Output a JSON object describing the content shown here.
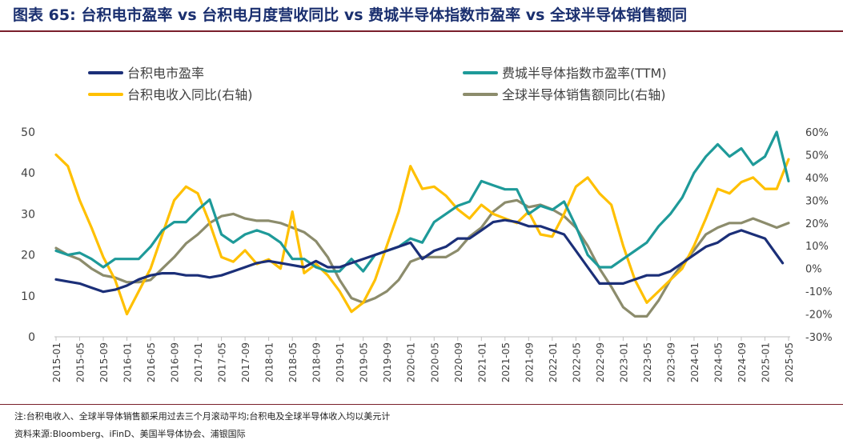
{
  "header": {
    "label": "图表",
    "number": "65:",
    "title": "台积电市盈率 vs 台积电月度营收同比 vs 费城半导体指数市盈率 vs 全球半导体销售额同"
  },
  "footer": {
    "note": "注:台积电收入、全球半导体销售额采用过去三个月滚动平均;台积电及全球半导体收入均以美元计",
    "source": "资料来源:Bloomberg、iFinD、美国半导体协会、浦银国际"
  },
  "colors": {
    "tsmc_pe": "#1b2f78",
    "sox_pe": "#1e9a99",
    "tsmc_rev": "#ffc000",
    "global_sales": "#8c8c6c"
  },
  "chart_data": {
    "type": "line",
    "left_axis": {
      "ylim": [
        0,
        50
      ],
      "ticks": [
        "0",
        "10",
        "20",
        "30",
        "40",
        "50"
      ]
    },
    "right_axis": {
      "ylim": [
        -30,
        60
      ],
      "ticks": [
        "-30%",
        "-20%",
        "-10%",
        "0%",
        "10%",
        "20%",
        "30%",
        "40%",
        "50%",
        "60%"
      ]
    },
    "x_ticks": [
      "2015-01",
      "2015-05",
      "2015-09",
      "2016-01",
      "2016-05",
      "2016-09",
      "2017-01",
      "2017-05",
      "2017-09",
      "2018-01",
      "2018-05",
      "2018-09",
      "2019-01",
      "2019-05",
      "2019-09",
      "2020-01",
      "2020-05",
      "2020-09",
      "2021-01",
      "2021-05",
      "2021-09",
      "2022-01",
      "2022-05",
      "2022-09",
      "2023-01",
      "2023-05",
      "2023-09",
      "2024-01",
      "2024-05",
      "2024-09",
      "2025-01",
      "2025-05"
    ],
    "x_start": "2015-01",
    "legend": {
      "placement": "top",
      "entries": [
        "台积电市盈率",
        "费城半导体指数市盈率(TTM)",
        "台积电收入同比(右轴)",
        "全球半导体销售额同比(右轴)"
      ]
    },
    "series": [
      {
        "name": "台积电市盈率",
        "axis": "left",
        "x": [
          "2015-01",
          "2015-03",
          "2015-05",
          "2015-07",
          "2015-09",
          "2015-11",
          "2016-01",
          "2016-03",
          "2016-05",
          "2016-07",
          "2016-09",
          "2016-11",
          "2017-01",
          "2017-03",
          "2017-05",
          "2017-07",
          "2017-09",
          "2017-11",
          "2018-01",
          "2018-03",
          "2018-05",
          "2018-07",
          "2018-09",
          "2018-11",
          "2019-01",
          "2019-03",
          "2019-05",
          "2019-07",
          "2019-09",
          "2019-11",
          "2020-01",
          "2020-03",
          "2020-05",
          "2020-07",
          "2020-09",
          "2020-11",
          "2021-01",
          "2021-03",
          "2021-05",
          "2021-07",
          "2021-09",
          "2021-11",
          "2022-01",
          "2022-03",
          "2022-05",
          "2022-07",
          "2022-09",
          "2022-11",
          "2023-01",
          "2023-03",
          "2023-05",
          "2023-07",
          "2023-09",
          "2023-11",
          "2024-01",
          "2024-03",
          "2024-05",
          "2024-07",
          "2024-09",
          "2024-11",
          "2025-01",
          "2025-03",
          "2025-04"
        ],
        "values": [
          14,
          13.5,
          13,
          12,
          11,
          11.5,
          12.5,
          14,
          15,
          15.5,
          15.5,
          15,
          15,
          14.5,
          15,
          16,
          17,
          18,
          18.5,
          18,
          17.5,
          17,
          18.5,
          17,
          17,
          18,
          19,
          20,
          21,
          22,
          23,
          19,
          21,
          22,
          24,
          24,
          26,
          28,
          28.5,
          28,
          27,
          27,
          26,
          25,
          21,
          17,
          13,
          13,
          13,
          14,
          15,
          15,
          16,
          18,
          20,
          22,
          23,
          25,
          26,
          25,
          24,
          20,
          18
        ]
      },
      {
        "name": "费城半导体指数市盈率(TTM)",
        "axis": "left",
        "x": [
          "2015-01",
          "2015-03",
          "2015-05",
          "2015-07",
          "2015-09",
          "2015-11",
          "2016-01",
          "2016-03",
          "2016-05",
          "2016-07",
          "2016-09",
          "2016-11",
          "2017-01",
          "2017-03",
          "2017-05",
          "2017-07",
          "2017-09",
          "2017-11",
          "2018-01",
          "2018-03",
          "2018-05",
          "2018-07",
          "2018-09",
          "2018-11",
          "2019-01",
          "2019-03",
          "2019-05",
          "2019-07",
          "2019-09",
          "2019-11",
          "2020-01",
          "2020-03",
          "2020-05",
          "2020-07",
          "2020-09",
          "2020-11",
          "2021-01",
          "2021-03",
          "2021-05",
          "2021-07",
          "2021-09",
          "2021-11",
          "2022-01",
          "2022-03",
          "2022-05",
          "2022-07",
          "2022-09",
          "2022-11",
          "2023-01",
          "2023-03",
          "2023-05",
          "2023-07",
          "2023-09",
          "2023-11",
          "2024-01",
          "2024-03",
          "2024-05",
          "2024-07",
          "2024-09",
          "2024-11",
          "2025-01",
          "2025-03",
          "2025-05"
        ],
        "values": [
          21,
          20,
          20.5,
          19,
          17,
          19,
          19,
          19,
          22,
          26,
          28,
          28,
          31,
          33.5,
          25,
          23,
          25,
          26,
          25,
          23,
          19,
          19,
          17,
          16,
          16,
          19,
          16,
          20,
          21,
          22,
          24,
          23,
          28,
          30,
          32,
          33,
          38,
          37,
          36,
          36,
          30,
          32,
          31,
          33,
          27,
          20,
          17,
          17,
          19,
          21,
          23,
          27,
          30,
          34,
          40,
          44,
          47,
          44,
          46,
          42,
          44,
          50,
          38
        ]
      },
      {
        "name": "台积电收入同比(右轴)",
        "axis": "right",
        "x": [
          "2015-01",
          "2015-03",
          "2015-05",
          "2015-07",
          "2015-09",
          "2015-11",
          "2016-01",
          "2016-03",
          "2016-05",
          "2016-07",
          "2016-09",
          "2016-11",
          "2017-01",
          "2017-03",
          "2017-05",
          "2017-07",
          "2017-09",
          "2017-11",
          "2018-01",
          "2018-03",
          "2018-05",
          "2018-07",
          "2018-09",
          "2018-11",
          "2019-01",
          "2019-03",
          "2019-05",
          "2019-07",
          "2019-09",
          "2019-11",
          "2020-01",
          "2020-03",
          "2020-05",
          "2020-07",
          "2020-09",
          "2020-11",
          "2021-01",
          "2021-03",
          "2021-05",
          "2021-07",
          "2021-09",
          "2021-11",
          "2022-01",
          "2022-03",
          "2022-05",
          "2022-07",
          "2022-09",
          "2022-11",
          "2023-01",
          "2023-03",
          "2023-05",
          "2023-07",
          "2023-09",
          "2023-11",
          "2024-01",
          "2024-03",
          "2024-05",
          "2024-07",
          "2024-09",
          "2024-11",
          "2025-01",
          "2025-03",
          "2025-05"
        ],
        "values": [
          50,
          45,
          30,
          18,
          5,
          -5,
          -20,
          -10,
          0,
          15,
          30,
          36,
          33,
          20,
          5,
          3,
          8,
          2,
          4,
          0,
          25,
          -2,
          2,
          -3,
          -10,
          -19,
          -15,
          -5,
          10,
          25,
          45,
          35,
          36,
          32,
          26,
          22,
          28,
          24,
          22,
          20,
          25,
          15,
          14,
          24,
          36,
          40,
          33,
          28,
          10,
          -5,
          -15,
          -10,
          -5,
          0,
          10,
          22,
          35,
          33,
          38,
          40,
          35,
          35,
          48
        ]
      },
      {
        "name": "全球半导体销售额同比(右轴)",
        "axis": "right",
        "x": [
          "2015-01",
          "2015-03",
          "2015-05",
          "2015-07",
          "2015-09",
          "2015-11",
          "2016-01",
          "2016-03",
          "2016-05",
          "2016-07",
          "2016-09",
          "2016-11",
          "2017-01",
          "2017-03",
          "2017-05",
          "2017-07",
          "2017-09",
          "2017-11",
          "2018-01",
          "2018-03",
          "2018-05",
          "2018-07",
          "2018-09",
          "2018-11",
          "2019-01",
          "2019-03",
          "2019-05",
          "2019-07",
          "2019-09",
          "2019-11",
          "2020-01",
          "2020-03",
          "2020-05",
          "2020-07",
          "2020-09",
          "2020-11",
          "2021-01",
          "2021-03",
          "2021-05",
          "2021-07",
          "2021-09",
          "2021-11",
          "2022-01",
          "2022-03",
          "2022-05",
          "2022-07",
          "2022-09",
          "2022-11",
          "2023-01",
          "2023-03",
          "2023-05",
          "2023-07",
          "2023-09",
          "2023-11",
          "2024-01",
          "2024-03",
          "2024-05",
          "2024-07",
          "2024-09",
          "2024-11",
          "2025-01",
          "2025-03",
          "2025-05"
        ],
        "values": [
          9,
          6,
          4,
          0,
          -3,
          -4,
          -6,
          -6,
          -5,
          0,
          5,
          11,
          15,
          20,
          23,
          24,
          22,
          21,
          21,
          20,
          18,
          16,
          12,
          5,
          -5,
          -13,
          -15,
          -13,
          -10,
          -5,
          3,
          5,
          5,
          5,
          8,
          14,
          18,
          25,
          29,
          30,
          27,
          28,
          26,
          23,
          18,
          10,
          0,
          -8,
          -17,
          -21,
          -21,
          -14,
          -5,
          2,
          8,
          15,
          18,
          20,
          20,
          22,
          20,
          18,
          20
        ]
      }
    ]
  }
}
